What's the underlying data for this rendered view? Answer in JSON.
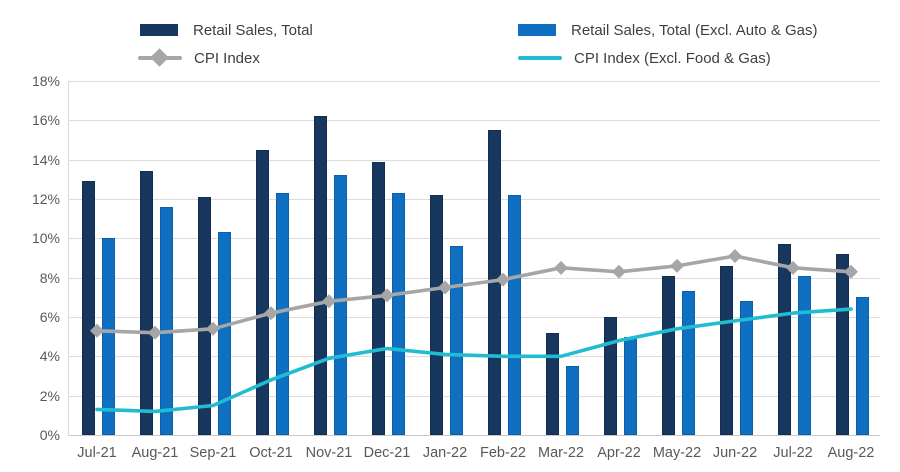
{
  "legend": {
    "items": [
      {
        "label": "Retail Sales, Total",
        "swatch": "bar",
        "color": "#17375E"
      },
      {
        "label": "Retail Sales, Total (Excl. Auto & Gas)",
        "swatch": "bar",
        "color": "#0F6FC0"
      },
      {
        "label": "CPI Index",
        "swatch": "line-diamond",
        "color": "#A6A6A6"
      },
      {
        "label": "CPI Index (Excl. Food & Gas)",
        "swatch": "line",
        "color": "#22BCD2"
      }
    ]
  },
  "chart_data": {
    "type": "bar",
    "subtype": "grouped bars with overlaid line series",
    "categories": [
      "Jul-21",
      "Aug-21",
      "Sep-21",
      "Oct-21",
      "Nov-21",
      "Dec-21",
      "Jan-22",
      "Feb-22",
      "Mar-22",
      "Apr-22",
      "May-22",
      "Jun-22",
      "Jul-22",
      "Aug-22"
    ],
    "series": [
      {
        "name": "Retail Sales, Total",
        "type": "bar",
        "color": "#17375E",
        "values": [
          12.9,
          13.4,
          12.1,
          14.5,
          16.2,
          13.9,
          12.2,
          15.5,
          5.2,
          6.0,
          8.1,
          8.6,
          9.7,
          9.2
        ]
      },
      {
        "name": "Retail Sales, Total (Excl. Auto & Gas)",
        "type": "bar",
        "color": "#0F6FC0",
        "values": [
          10.0,
          11.6,
          10.3,
          12.3,
          13.2,
          12.3,
          9.6,
          12.2,
          3.5,
          5.0,
          7.3,
          6.8,
          8.1,
          7.0
        ]
      },
      {
        "name": "CPI Index",
        "type": "line",
        "marker": "diamond",
        "color": "#A6A6A6",
        "values": [
          5.3,
          5.2,
          5.4,
          6.2,
          6.8,
          7.1,
          7.5,
          7.9,
          8.5,
          8.3,
          8.6,
          9.1,
          8.5,
          8.3
        ]
      },
      {
        "name": "CPI Index (Excl. Food & Gas)",
        "type": "line",
        "marker": "none",
        "color": "#22BCD2",
        "values": [
          1.3,
          1.2,
          1.5,
          2.8,
          3.9,
          4.4,
          4.1,
          4.0,
          4.0,
          4.8,
          5.4,
          5.8,
          6.2,
          6.4
        ]
      }
    ],
    "title": "",
    "xlabel": "",
    "ylabel": "",
    "ylim": [
      0,
      18
    ],
    "ytick_step": 2,
    "ytick_labels": [
      "0%",
      "2%",
      "4%",
      "6%",
      "8%",
      "10%",
      "12%",
      "14%",
      "16%",
      "18%"
    ],
    "grid": true,
    "legend_position": "top",
    "units": "percent"
  },
  "colors": {
    "background": "#FFFFFF",
    "bar_dark_navy": "#17375E",
    "bar_blue": "#0F6FC0",
    "line_gray": "#A6A6A6",
    "line_cyan": "#22BCD2",
    "gridline": "#DCDCDC",
    "axis_text": "#595959",
    "legend_text": "#3F3F3F"
  }
}
